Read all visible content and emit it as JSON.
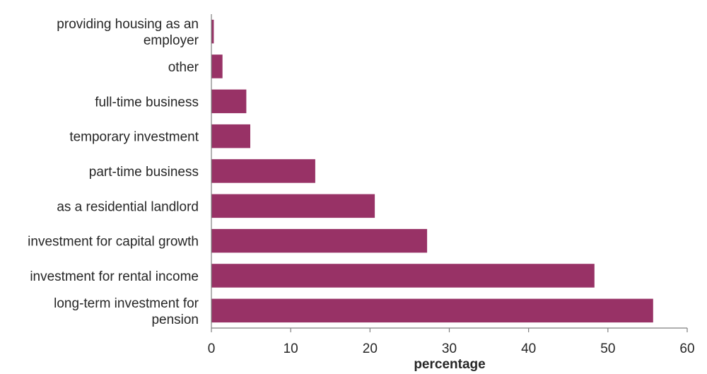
{
  "colors": {
    "bar": "#983266",
    "axis": "#7f7f7f",
    "text": "#262626"
  },
  "chart_data": {
    "type": "bar",
    "orientation": "horizontal",
    "categories": [
      "providing housing as an employer",
      "other",
      "full-time business",
      "temporary investment",
      "part-time business",
      "as a residential landlord",
      "investment for capital growth",
      "investment for rental income",
      "long-term investment for pension"
    ],
    "category_label_lines": [
      [
        "providing housing as an",
        "employer"
      ],
      [
        "other"
      ],
      [
        "full-time business"
      ],
      [
        "temporary investment"
      ],
      [
        "part-time business"
      ],
      [
        "as a residential landlord"
      ],
      [
        "investment for capital growth"
      ],
      [
        "investment for rental income"
      ],
      [
        "long-term investment for",
        "pension"
      ]
    ],
    "values": [
      0.3,
      1.4,
      4.4,
      4.9,
      13.1,
      20.6,
      27.2,
      48.3,
      55.7
    ],
    "xlabel": "percentage",
    "ylabel": "",
    "xlim": [
      0,
      60
    ],
    "xticks": [
      0,
      10,
      20,
      30,
      40,
      50,
      60
    ],
    "grid": false,
    "legend": "none"
  }
}
